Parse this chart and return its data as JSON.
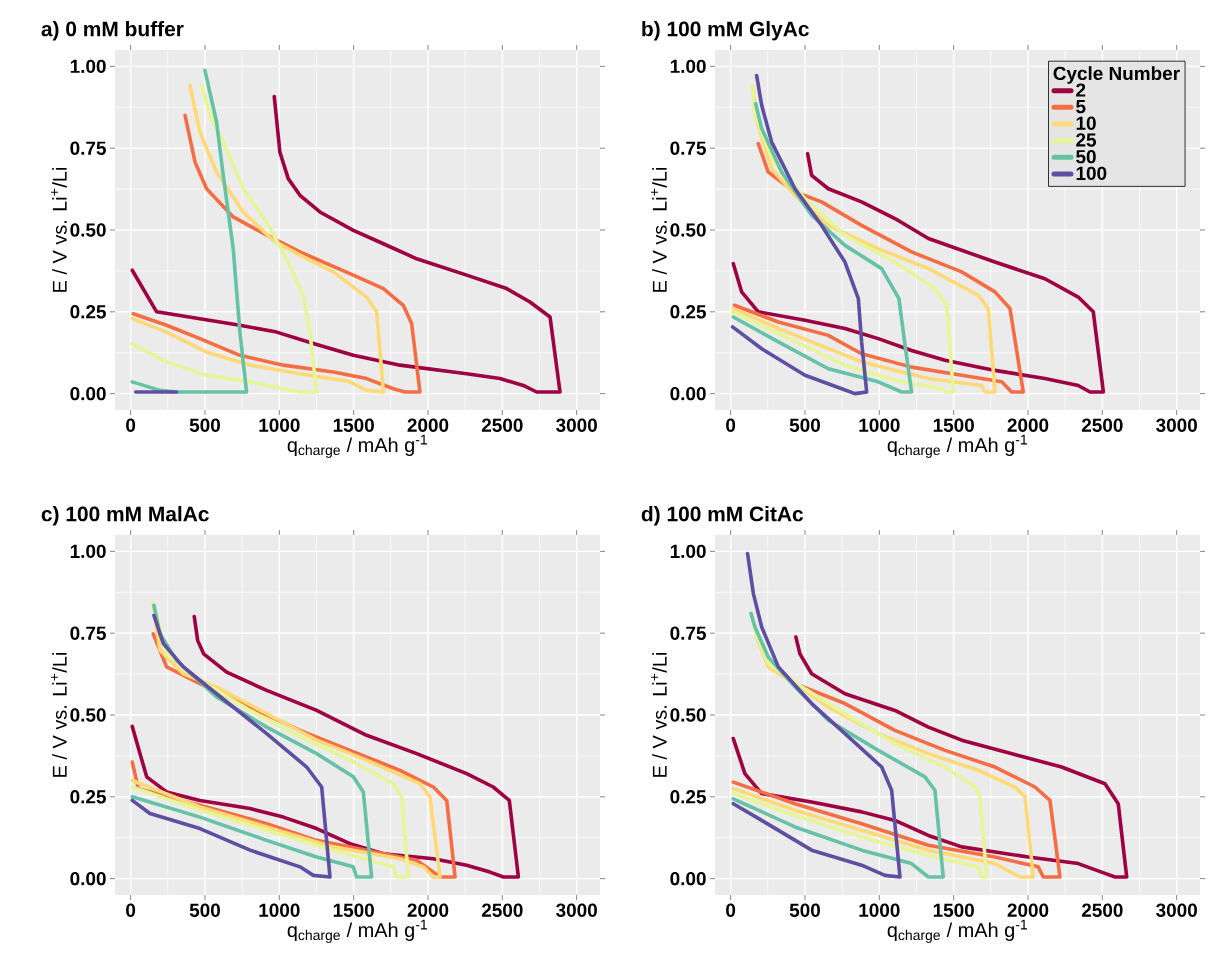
{
  "chart_data": [
    {
      "type": "line",
      "title": "a) 0 mM buffer",
      "xlabel": "q$_{charge}$ / mAh  g$^{-1}$",
      "ylabel": "E / V vs. Li$^{+}$/Li",
      "xlim": [
        -105,
        3157
      ],
      "ylim": [
        -0.05,
        1.05
      ],
      "xticks": [
        0,
        500,
        1000,
        1500,
        2000,
        2500,
        3000
      ],
      "yticks": [
        {
          "value": 0,
          "label": "0.00"
        },
        {
          "value": 0.25,
          "label": "0.25"
        },
        {
          "value": 0.5,
          "label": "0.50"
        },
        {
          "value": 0.75,
          "label": "0.75"
        },
        {
          "value": 1,
          "label": "1.00"
        }
      ],
      "grid": true,
      "marker": "none",
      "line_style": "solid",
      "series": [
        {
          "color": "#9e0142",
          "x": [
            11,
            175,
            466,
            735,
            982,
            1229,
            1498,
            1812,
            2260,
            2484,
            2641,
            2731,
            2888,
            2821,
            2686,
            2529,
            2260,
            1924,
            1700,
            1498,
            1273,
            1139,
            1060,
            1004,
            966
          ],
          "values": [
            0.377,
            0.25,
            0.229,
            0.209,
            0.188,
            0.153,
            0.117,
            0.087,
            0.061,
            0.046,
            0.025,
            0.005,
            0.005,
            0.234,
            0.28,
            0.321,
            0.362,
            0.412,
            0.458,
            0.499,
            0.555,
            0.606,
            0.657,
            0.738,
            0.908
          ]
        },
        {
          "color": "#f46d43",
          "x": [
            18,
            242,
            466,
            735,
            1027,
            1363,
            1587,
            1767,
            1845,
            1946,
            1890,
            1834,
            1700,
            1498,
            1139,
            915,
            690,
            511,
            433,
            366
          ],
          "values": [
            0.244,
            0.209,
            0.168,
            0.117,
            0.087,
            0.066,
            0.046,
            0.015,
            0.005,
            0.005,
            0.214,
            0.27,
            0.321,
            0.362,
            0.433,
            0.484,
            0.54,
            0.626,
            0.708,
            0.85
          ]
        },
        {
          "color": "#fed976",
          "x": [
            11,
            242,
            511,
            803,
            1139,
            1475,
            1587,
            1700,
            1655,
            1587,
            1363,
            1139,
            959,
            757,
            578,
            466,
            399
          ],
          "values": [
            0.229,
            0.188,
            0.127,
            0.087,
            0.061,
            0.036,
            0.01,
            0.005,
            0.25,
            0.295,
            0.372,
            0.423,
            0.468,
            0.555,
            0.677,
            0.799,
            0.942
          ]
        },
        {
          "color": "#e6f598",
          "x": [
            7,
            242,
            511,
            803,
            1027,
            1139,
            1251,
            1206,
            1161,
            1049,
            915,
            757,
            623,
            534,
            478
          ],
          "values": [
            0.153,
            0.097,
            0.056,
            0.036,
            0.015,
            0.005,
            0.005,
            0.188,
            0.3,
            0.412,
            0.524,
            0.626,
            0.769,
            0.85,
            0.942
          ]
        },
        {
          "color": "#66c2a5",
          "x": [
            11,
            197,
            309,
            780,
            735,
            690,
            623,
            578,
            500
          ],
          "values": [
            0.036,
            0.01,
            0.005,
            0.005,
            0.188,
            0.443,
            0.667,
            0.83,
            0.988
          ]
        },
        {
          "color": "#5e4fa2",
          "x": [
            34,
            170,
            309
          ],
          "values": [
            0.005,
            0.005,
            0.005
          ]
        }
      ]
    },
    {
      "type": "line",
      "title": "b) 100 mM GlyAc",
      "xlabel": "q$_{charge}$ / mAh  g$^{-1}$",
      "ylabel": "E / V vs. Li$^{+}$/Li",
      "legend_title": "Cycle Number",
      "legend": "top right",
      "xlim": [
        -105,
        3157
      ],
      "ylim": [
        -0.05,
        1.05
      ],
      "xticks": [
        0,
        500,
        1000,
        1500,
        2000,
        2500,
        3000
      ],
      "yticks": [
        {
          "value": 0,
          "label": "0.00"
        },
        {
          "value": 0.25,
          "label": "0.25"
        },
        {
          "value": 0.5,
          "label": "0.50"
        },
        {
          "value": 0.75,
          "label": "0.75"
        },
        {
          "value": 1,
          "label": "1.00"
        }
      ],
      "grid": true,
      "marker": "none",
      "line_style": "solid",
      "series": [
        {
          "name": "2",
          "color": "#9e0142",
          "x": [
            18,
            74,
            186,
            500,
            769,
            993,
            1217,
            1442,
            1778,
            2114,
            2338,
            2417,
            2507,
            2439,
            2338,
            2114,
            1778,
            1554,
            1330,
            1105,
            881,
            657,
            545,
            518
          ],
          "values": [
            0.397,
            0.311,
            0.25,
            0.224,
            0.199,
            0.168,
            0.132,
            0.102,
            0.071,
            0.046,
            0.025,
            0.005,
            0.005,
            0.25,
            0.295,
            0.351,
            0.402,
            0.438,
            0.474,
            0.535,
            0.586,
            0.626,
            0.667,
            0.733
          ]
        },
        {
          "name": "5",
          "color": "#f46d43",
          "x": [
            25,
            321,
            657,
            881,
            1217,
            1554,
            1823,
            1890,
            1968,
            1879,
            1778,
            1554,
            1217,
            881,
            612,
            433,
            253,
            186
          ],
          "values": [
            0.27,
            0.219,
            0.178,
            0.122,
            0.081,
            0.056,
            0.036,
            0.005,
            0.005,
            0.26,
            0.311,
            0.372,
            0.433,
            0.514,
            0.586,
            0.616,
            0.677,
            0.764
          ]
        },
        {
          "name": "10",
          "color": "#fed976",
          "x": [
            18,
            321,
            881,
            1330,
            1688,
            1711,
            1778,
            1733,
            1666,
            1330,
            993,
            657,
            433,
            276,
            164,
            152
          ],
          "values": [
            0.26,
            0.199,
            0.097,
            0.046,
            0.025,
            0.005,
            0.005,
            0.26,
            0.3,
            0.382,
            0.443,
            0.514,
            0.606,
            0.687,
            0.85,
            0.932
          ]
        },
        {
          "name": "25",
          "color": "#e6f598",
          "x": [
            13,
            321,
            769,
            1105,
            1419,
            1442,
            1498,
            1453,
            1374,
            1105,
            769,
            500,
            276,
            164,
            146
          ],
          "values": [
            0.25,
            0.183,
            0.087,
            0.041,
            0.015,
            0.005,
            0.005,
            0.27,
            0.321,
            0.402,
            0.484,
            0.596,
            0.718,
            0.85,
            0.942
          ]
        },
        {
          "name": "50",
          "color": "#66c2a5",
          "x": [
            18,
            321,
            657,
            993,
            1150,
            1217,
            1173,
            1132,
            1016,
            769,
            545,
            343,
            209,
            168
          ],
          "values": [
            0.234,
            0.158,
            0.076,
            0.036,
            0.005,
            0.005,
            0.148,
            0.29,
            0.382,
            0.453,
            0.545,
            0.677,
            0.81,
            0.886
          ]
        },
        {
          "name": "100",
          "color": "#5e4fa2",
          "x": [
            13,
            209,
            500,
            747,
            836,
            915,
            881,
            859,
            769,
            612,
            433,
            276,
            209,
            175
          ],
          "values": [
            0.204,
            0.137,
            0.056,
            0.015,
            0.0,
            0.005,
            0.158,
            0.29,
            0.402,
            0.514,
            0.626,
            0.769,
            0.881,
            0.972
          ]
        }
      ]
    },
    {
      "type": "line",
      "title": "c) 100 mM MalAc",
      "xlabel": "q$_{charge}$ / mAh  g$^{-1}$",
      "ylabel": "E / V vs. Li$^{+}$/Li",
      "xlim": [
        -105,
        3157
      ],
      "ylim": [
        -0.05,
        1.05
      ],
      "xticks": [
        0,
        500,
        1000,
        1500,
        2000,
        2500,
        3000
      ],
      "yticks": [
        {
          "value": 0,
          "label": "0.00"
        },
        {
          "value": 0.25,
          "label": "0.25"
        },
        {
          "value": 0.5,
          "label": "0.50"
        },
        {
          "value": 0.75,
          "label": "0.75"
        },
        {
          "value": 1,
          "label": "1.00"
        }
      ],
      "grid": true,
      "marker": "none",
      "line_style": "solid",
      "series": [
        {
          "color": "#9e0142",
          "x": [
            11,
            108,
            242,
            466,
            803,
            1027,
            1251,
            1475,
            1700,
            2036,
            2260,
            2417,
            2507,
            2608,
            2547,
            2439,
            2260,
            1924,
            1587,
            1251,
            915,
            646,
            491,
            451,
            428
          ],
          "values": [
            0.465,
            0.311,
            0.265,
            0.239,
            0.214,
            0.188,
            0.153,
            0.107,
            0.076,
            0.061,
            0.041,
            0.02,
            0.005,
            0.005,
            0.239,
            0.28,
            0.321,
            0.382,
            0.438,
            0.514,
            0.575,
            0.631,
            0.687,
            0.728,
            0.801
          ]
        },
        {
          "color": "#f46d43",
          "x": [
            11,
            52,
            466,
            915,
            1251,
            1587,
            1924,
            2081,
            2182,
            2126,
            2036,
            1812,
            1475,
            1139,
            803,
            466,
            242,
            152
          ],
          "values": [
            0.356,
            0.275,
            0.224,
            0.168,
            0.117,
            0.087,
            0.056,
            0.005,
            0.005,
            0.239,
            0.28,
            0.331,
            0.392,
            0.453,
            0.524,
            0.596,
            0.647,
            0.748
          ]
        },
        {
          "color": "#fed976",
          "x": [
            11,
            466,
            915,
            1363,
            1812,
            1969,
            2036,
            2081,
            2013,
            1946,
            1587,
            1251,
            915,
            578,
            354,
            197,
            152
          ],
          "values": [
            0.3,
            0.219,
            0.158,
            0.097,
            0.061,
            0.036,
            0.005,
            0.005,
            0.25,
            0.29,
            0.362,
            0.423,
            0.504,
            0.586,
            0.626,
            0.698,
            0.84
          ]
        },
        {
          "color": "#e6f598",
          "x": [
            11,
            466,
            915,
            1363,
            1767,
            1789,
            1868,
            1823,
            1767,
            1475,
            1139,
            803,
            466,
            242,
            164,
            152
          ],
          "values": [
            0.28,
            0.209,
            0.148,
            0.087,
            0.036,
            0.005,
            0.005,
            0.25,
            0.29,
            0.362,
            0.433,
            0.514,
            0.606,
            0.687,
            0.82,
            0.845
          ]
        },
        {
          "color": "#66c2a5",
          "x": [
            11,
            466,
            915,
            1251,
            1497,
            1520,
            1621,
            1565,
            1498,
            1251,
            915,
            578,
            309,
            197,
            157
          ],
          "values": [
            0.25,
            0.188,
            0.117,
            0.066,
            0.036,
            0.005,
            0.005,
            0.265,
            0.311,
            0.382,
            0.463,
            0.555,
            0.667,
            0.748,
            0.835
          ]
        },
        {
          "color": "#5e4fa2",
          "x": [
            11,
            130,
            466,
            803,
            1139,
            1229,
            1341,
            1285,
            1184,
            915,
            578,
            354,
            220,
            157
          ],
          "values": [
            0.239,
            0.199,
            0.153,
            0.087,
            0.036,
            0.01,
            0.005,
            0.28,
            0.341,
            0.443,
            0.565,
            0.647,
            0.718,
            0.804
          ]
        }
      ]
    },
    {
      "type": "line",
      "title": "d) 100 mM CitAc",
      "xlabel": "q$_{charge}$ / mAh  g$^{-1}$",
      "ylabel": "E / V vs. Li$^{+}$/Li",
      "xlim": [
        -105,
        3157
      ],
      "ylim": [
        -0.05,
        1.05
      ],
      "xticks": [
        0,
        500,
        1000,
        1500,
        2000,
        2500,
        3000
      ],
      "yticks": [
        {
          "value": 0,
          "label": "0.00"
        },
        {
          "value": 0.25,
          "label": "0.25"
        },
        {
          "value": 0.5,
          "label": "0.50"
        },
        {
          "value": 0.75,
          "label": "0.75"
        },
        {
          "value": 1,
          "label": "1.00"
        }
      ],
      "grid": true,
      "marker": "none",
      "line_style": "solid",
      "series": [
        {
          "color": "#9e0142",
          "x": [
            18,
            96,
            209,
            545,
            881,
            1105,
            1330,
            1554,
            2002,
            2338,
            2495,
            2585,
            2664,
            2607,
            2518,
            2226,
            1890,
            1554,
            1330,
            1105,
            769,
            545,
            466,
            439
          ],
          "values": [
            0.428,
            0.321,
            0.26,
            0.234,
            0.204,
            0.178,
            0.132,
            0.097,
            0.066,
            0.046,
            0.02,
            0.005,
            0.005,
            0.229,
            0.29,
            0.341,
            0.382,
            0.423,
            0.463,
            0.514,
            0.565,
            0.626,
            0.687,
            0.738
          ]
        },
        {
          "color": "#f46d43",
          "x": [
            18,
            433,
            881,
            1330,
            1778,
            2069,
            2103,
            2215,
            2148,
            2047,
            1778,
            1442,
            1105,
            769,
            433
          ],
          "values": [
            0.295,
            0.229,
            0.168,
            0.102,
            0.066,
            0.036,
            0.005,
            0.005,
            0.239,
            0.28,
            0.341,
            0.392,
            0.453,
            0.535,
            0.596
          ]
        },
        {
          "color": "#fed976",
          "x": [
            18,
            433,
            881,
            1330,
            1778,
            1946,
            2036,
            1980,
            1912,
            1666,
            1330,
            993,
            657,
            433,
            253,
            175
          ],
          "values": [
            0.275,
            0.209,
            0.148,
            0.087,
            0.046,
            0.005,
            0.005,
            0.25,
            0.28,
            0.331,
            0.382,
            0.443,
            0.524,
            0.596,
            0.647,
            0.738
          ]
        },
        {
          "color": "#e6f598",
          "x": [
            18,
            433,
            881,
            1330,
            1666,
            1688,
            1722,
            1677,
            1644,
            1442,
            1105,
            769,
            478,
            253,
            164,
            141
          ],
          "values": [
            0.26,
            0.193,
            0.127,
            0.071,
            0.036,
            0.005,
            0.005,
            0.25,
            0.28,
            0.341,
            0.412,
            0.504,
            0.586,
            0.657,
            0.759,
            0.81
          ]
        },
        {
          "color": "#66c2a5",
          "x": [
            18,
            433,
            881,
            1217,
            1330,
            1430,
            1374,
            1307,
            993,
            657,
            433,
            253,
            164,
            137
          ],
          "values": [
            0.244,
            0.158,
            0.087,
            0.046,
            0.005,
            0.005,
            0.27,
            0.311,
            0.392,
            0.484,
            0.586,
            0.677,
            0.769,
            0.81
          ]
        },
        {
          "color": "#5e4fa2",
          "x": [
            18,
            209,
            545,
            881,
            1038,
            1139,
            1083,
            1016,
            769,
            545,
            321,
            209,
            153,
            114
          ],
          "values": [
            0.229,
            0.178,
            0.087,
            0.041,
            0.01,
            0.005,
            0.27,
            0.341,
            0.443,
            0.535,
            0.647,
            0.769,
            0.871,
            0.993
          ]
        }
      ]
    }
  ]
}
